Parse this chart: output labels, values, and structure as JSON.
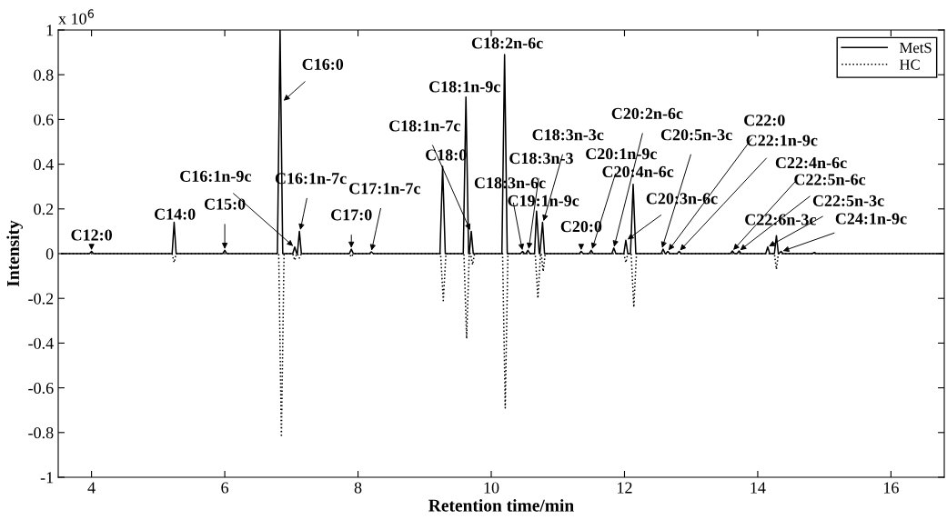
{
  "chart_data": {
    "type": "line",
    "xlabel": "Retention time/min",
    "ylabel": "Intensity",
    "xlim": [
      3.5,
      16.8
    ],
    "xticks": [
      4,
      6,
      8,
      10,
      12,
      14,
      16
    ],
    "ylim": [
      -1,
      1
    ],
    "yticks": [
      -1,
      -0.8,
      -0.6,
      -0.4,
      -0.2,
      0,
      0.2,
      0.4,
      0.6,
      0.8,
      1
    ],
    "grid": false,
    "legend": "top right",
    "marker": "none",
    "series": [
      {
        "name": "MetS",
        "color": "#000000",
        "line_style": "solid",
        "x": [
          3.55,
          3.97,
          4.0,
          4.03,
          5.21,
          5.24,
          5.27,
          5.97,
          6.0,
          6.03,
          6.79,
          6.83,
          6.87,
          7.02,
          7.05,
          7.08,
          7.09,
          7.12,
          7.15,
          7.87,
          7.9,
          7.93,
          8.17,
          8.2,
          8.23,
          9.23,
          9.27,
          9.31,
          9.58,
          9.62,
          9.66,
          9.67,
          9.7,
          9.73,
          10.16,
          10.2,
          10.24,
          10.44,
          10.47,
          10.5,
          10.52,
          10.55,
          10.58,
          10.65,
          10.68,
          10.72,
          10.73,
          10.77,
          10.8,
          11.32,
          11.35,
          11.38,
          11.47,
          11.5,
          11.53,
          11.81,
          11.84,
          11.87,
          11.99,
          12.02,
          12.05,
          12.09,
          12.13,
          12.17,
          12.55,
          12.58,
          12.61,
          12.62,
          12.65,
          12.68,
          12.79,
          12.82,
          12.85,
          13.59,
          13.62,
          13.65,
          13.69,
          13.72,
          13.75,
          14.12,
          14.15,
          14.18,
          14.25,
          14.28,
          14.31,
          14.32,
          14.35,
          14.38,
          14.82,
          14.85,
          14.88,
          16.8
        ],
        "values": [
          0,
          0,
          0.01,
          0,
          0,
          0.14,
          0,
          0,
          0.015,
          0,
          0,
          1.0,
          0,
          0,
          0.03,
          0,
          0,
          0.1,
          0,
          0,
          0.02,
          0,
          0,
          0.008,
          0,
          0,
          0.39,
          0,
          0,
          0.7,
          0,
          0,
          0.1,
          0,
          0,
          0.89,
          0,
          0,
          0.01,
          0,
          0,
          0.015,
          0,
          0,
          0.19,
          0,
          0,
          0.14,
          0,
          0,
          0.01,
          0,
          0,
          0.015,
          0,
          0,
          0.025,
          0,
          0,
          0.06,
          0,
          0,
          0.31,
          0,
          0,
          0.02,
          0,
          0,
          0.01,
          0,
          0,
          0.01,
          0,
          0,
          0.012,
          0,
          0,
          0.012,
          0,
          0,
          0.03,
          0,
          0,
          0.08,
          0,
          0,
          0.01,
          0,
          0,
          0.005,
          0,
          0
        ]
      },
      {
        "name": "HC",
        "color": "#000000",
        "line_style": "dotted",
        "x": [
          3.55,
          5.21,
          5.24,
          5.27,
          6.81,
          6.85,
          6.89,
          7.02,
          7.05,
          7.08,
          7.09,
          7.12,
          7.15,
          7.87,
          7.9,
          7.93,
          9.24,
          9.28,
          9.32,
          9.59,
          9.63,
          9.67,
          9.69,
          9.72,
          9.75,
          10.17,
          10.21,
          10.25,
          10.66,
          10.7,
          10.74,
          10.75,
          10.78,
          10.81,
          11.99,
          12.02,
          12.05,
          12.1,
          12.14,
          12.18,
          14.25,
          14.28,
          14.31,
          16.8
        ],
        "values": [
          0,
          0,
          -0.04,
          0,
          0,
          -0.82,
          0,
          0,
          -0.03,
          0,
          0,
          -0.02,
          0,
          0,
          -0.015,
          0,
          0,
          -0.21,
          0,
          0,
          -0.38,
          0,
          0,
          -0.05,
          0,
          0,
          -0.69,
          0,
          0,
          -0.2,
          0,
          0,
          -0.08,
          0,
          0,
          -0.04,
          0,
          0,
          -0.24,
          0,
          0,
          -0.07,
          0,
          0
        ]
      }
    ],
    "annotations": [
      "x 10$^{6}$",
      {
        "text": "C12:0",
        "x": 4.0,
        "y": 0.01
      },
      {
        "text": "C14:0",
        "x": 5.24,
        "y": 0.14
      },
      {
        "text": "C15:0",
        "x": 6.0,
        "y": 0.015
      },
      {
        "text": "C16:0",
        "x": 6.87,
        "y": 0.68
      },
      {
        "text": "C16:1n-9c",
        "x": 7.04,
        "y": 0.03
      },
      {
        "text": "C16:1n-7c",
        "x": 7.13,
        "y": 0.1
      },
      {
        "text": "C17:0",
        "x": 7.9,
        "y": 0.02
      },
      {
        "text": "C17:1n-7c",
        "x": 8.2,
        "y": 0.008
      },
      {
        "text": "C18:1n-7c",
        "x": 9.69,
        "y": 0.1
      },
      {
        "text": "C18:0",
        "x": 9.27,
        "y": 0.39
      },
      {
        "text": "C18:1n-9c",
        "x": 9.62,
        "y": 0.7
      },
      {
        "text": "C18:2n-6c",
        "x": 10.2,
        "y": 0.89
      },
      {
        "text": "C18:3n-3c",
        "x": 10.78,
        "y": 0.14
      },
      {
        "text": "C18:3n-3",
        "x": 10.56,
        "y": 0.015
      },
      {
        "text": "C18:3n-6c",
        "x": 10.47,
        "y": 0.01
      },
      {
        "text": "C19:1n-9c",
        "x": 10.68,
        "y": 0.19
      },
      {
        "text": "C20:2n-6c",
        "x": 11.84,
        "y": 0.025
      },
      {
        "text": "C20:1n-9c",
        "x": 11.51,
        "y": 0.015
      },
      {
        "text": "C20:4n-6c",
        "x": 12.13,
        "y": 0.31
      },
      {
        "text": "C20:0",
        "x": 11.35,
        "y": 0.01
      },
      {
        "text": "C20:3n-6c",
        "x": 12.03,
        "y": 0.06
      },
      {
        "text": "C20:5n-3c",
        "x": 12.56,
        "y": 0.02
      },
      {
        "text": "C22:0",
        "x": 12.65,
        "y": 0.01
      },
      {
        "text": "C22:1n-9c",
        "x": 12.82,
        "y": 0.01
      },
      {
        "text": "C22:4n-6c",
        "x": 13.62,
        "y": 0.012
      },
      {
        "text": "C22:5n-6c",
        "x": 13.72,
        "y": 0.012
      },
      {
        "text": "C22:6n-3c",
        "x": 14.28,
        "y": 0.08
      },
      {
        "text": "C22:5n-3c",
        "x": 14.15,
        "y": 0.03
      },
      {
        "text": "C24:1n-9c",
        "x": 14.36,
        "y": 0.01
      }
    ]
  }
}
